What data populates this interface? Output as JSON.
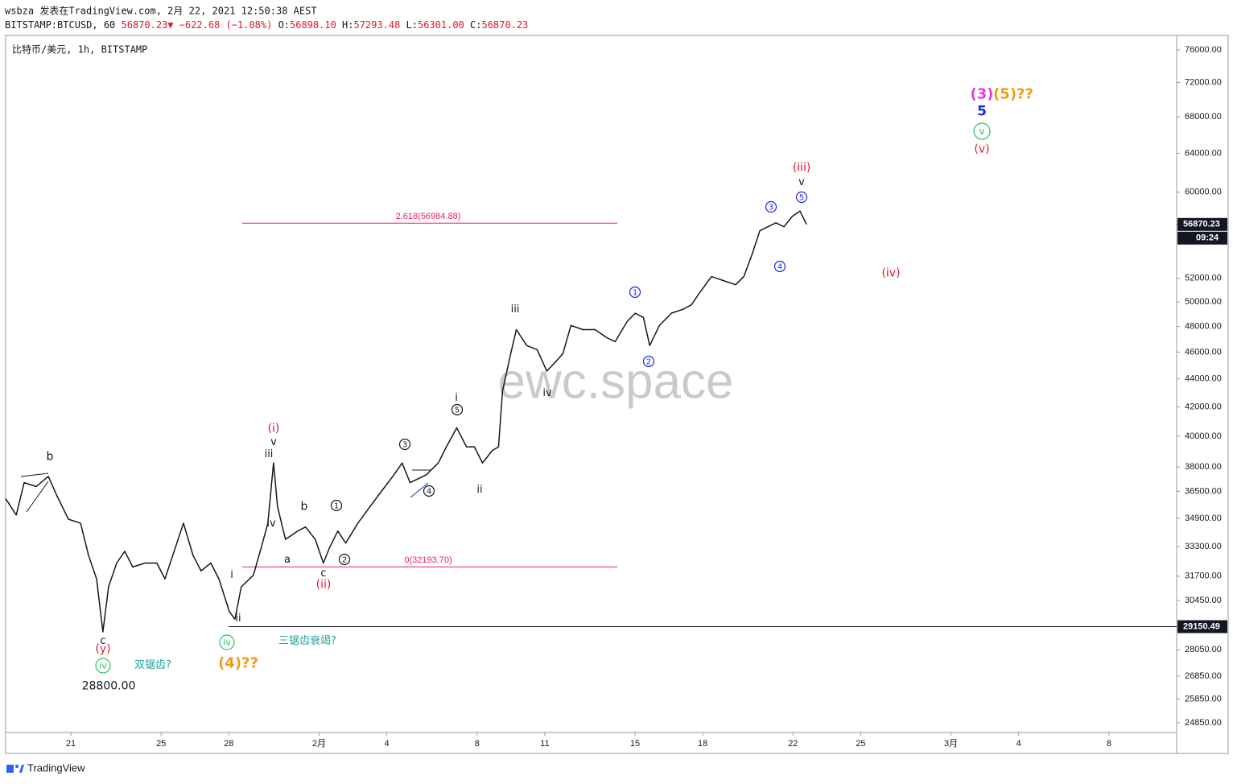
{
  "chart_data": {
    "type": "line",
    "header": "wsbza 发表在TradingView.com, 2月 22, 2021 12:50:38 AEST",
    "quote": [
      {
        "text": "BITSTAMP:BTCUSD, 60 ",
        "color": "#131722"
      },
      {
        "text": "56870.23",
        "color": "#e0182d"
      },
      {
        "text": "▼",
        "color": "#e0182d"
      },
      {
        "text": " −622.68 (−1.08%) ",
        "color": "#e0182d"
      },
      {
        "text": "O:",
        "color": "#131722"
      },
      {
        "text": "56898.10",
        "color": "#e0182d"
      },
      {
        "text": " H:",
        "color": "#131722"
      },
      {
        "text": "57293.48",
        "color": "#e0182d"
      },
      {
        "text": " L:",
        "color": "#131722"
      },
      {
        "text": "56301.00",
        "color": "#e0182d"
      },
      {
        "text": " C:",
        "color": "#131722"
      },
      {
        "text": "56870.23",
        "color": "#e0182d"
      }
    ],
    "title": "比特币/美元, 1h, BITSTAMP",
    "watermark": "ewc.space",
    "footer": "TradingView",
    "color": "#131722",
    "log_scale": true,
    "x": [
      -2.89,
      -2.42,
      -2.07,
      -1.53,
      -1.0,
      -0.64,
      -0.11,
      0.43,
      0.78,
      1.14,
      1.42,
      1.67,
      2.03,
      2.39,
      2.74,
      3.28,
      3.81,
      4.17,
      4.52,
      4.99,
      5.41,
      5.77,
      6.2,
      6.56,
      7.02,
      7.27,
      7.55,
      8.09,
      8.44,
      8.73,
      8.98,
      9.16,
      9.51,
      10.05,
      10.4,
      10.83,
      11.19,
      11.47,
      11.83,
      12.18,
      12.72,
      13.25,
      13.79,
      14.32,
      14.68,
      15.03,
      15.39,
      15.75,
      16.28,
      16.64,
      17.1,
      17.53,
      17.88,
      18.24,
      18.67,
      18.95,
      19.13,
      19.49,
      19.74,
      20.2,
      20.66,
      21.09,
      21.45,
      21.8,
      22.16,
      22.69,
      23.23,
      23.76,
      24.12,
      24.65,
      25.01,
      25.37,
      25.65,
      26.08,
      26.61,
      27.15,
      27.5,
      27.86,
      28.39,
      28.93,
      29.46,
      29.82,
      30.17,
      30.53,
      30.89,
      31.24,
      31.6,
      31.96,
      32.31,
      32.6
    ],
    "values": [
      36060,
      35090,
      37030,
      36790,
      37420,
      36300,
      34850,
      34620,
      32830,
      31560,
      28900,
      31140,
      32400,
      33040,
      32190,
      32400,
      32400,
      31560,
      32830,
      34620,
      32830,
      31980,
      32400,
      31560,
      29900,
      29510,
      31140,
      31760,
      33260,
      34620,
      38260,
      35570,
      33700,
      34170,
      34400,
      33700,
      32400,
      33260,
      34170,
      33490,
      34620,
      35570,
      36550,
      37520,
      38260,
      37030,
      37270,
      37520,
      38260,
      39300,
      40560,
      39300,
      39300,
      38260,
      39050,
      39300,
      43140,
      45870,
      47750,
      46500,
      46190,
      44570,
      45200,
      45870,
      48080,
      47750,
      47750,
      47100,
      46800,
      48400,
      49070,
      48730,
      46500,
      48080,
      49070,
      49410,
      49760,
      50770,
      52150,
      51790,
      51450,
      52150,
      54020,
      56270,
      56650,
      57020,
      56650,
      57620,
      58150,
      56870.23
    ],
    "xlim": [
      -2.89,
      49.0
    ],
    "xticks": [
      {
        "value": 0,
        "label": "21"
      },
      {
        "value": 4,
        "label": "25"
      },
      {
        "value": 7,
        "label": "28"
      },
      {
        "value": 11,
        "label": "2月"
      },
      {
        "value": 14,
        "label": "4"
      },
      {
        "value": 18,
        "label": "8"
      },
      {
        "value": 21,
        "label": "11"
      },
      {
        "value": 25,
        "label": "15"
      },
      {
        "value": 28,
        "label": "18"
      },
      {
        "value": 32,
        "label": "22"
      },
      {
        "value": 35,
        "label": "25"
      },
      {
        "value": 39,
        "label": "3月"
      },
      {
        "value": 42,
        "label": "4"
      },
      {
        "value": 46,
        "label": "8"
      }
    ],
    "ylim": [
      24450,
      77850
    ],
    "yticks": [
      {
        "value": 76000,
        "label": "76000.00"
      },
      {
        "value": 72000,
        "label": "72000.00"
      },
      {
        "value": 68000,
        "label": "68000.00"
      },
      {
        "value": 64000,
        "label": "64000.00"
      },
      {
        "value": 60000,
        "label": "60000.00"
      },
      {
        "value": 52000,
        "label": "52000.00"
      },
      {
        "value": 50000,
        "label": "50000.00"
      },
      {
        "value": 48000,
        "label": "48000.00"
      },
      {
        "value": 46000,
        "label": "46000.00"
      },
      {
        "value": 44000,
        "label": "44000.00"
      },
      {
        "value": 42000,
        "label": "42000.00"
      },
      {
        "value": 40000,
        "label": "40000.00"
      },
      {
        "value": 38000,
        "label": "38000.00"
      },
      {
        "value": 36500,
        "label": "36500.00"
      },
      {
        "value": 34900,
        "label": "34900.00"
      },
      {
        "value": 33300,
        "label": "33300.00"
      },
      {
        "value": 31700,
        "label": "31700.00"
      },
      {
        "value": 30450,
        "label": "30450.00"
      },
      {
        "value": 28050,
        "label": "28050.00"
      },
      {
        "value": 26850,
        "label": "26850.00"
      },
      {
        "value": 25850,
        "label": "25850.00"
      },
      {
        "value": 24850,
        "label": "24850.00"
      }
    ],
    "fib_levels": [
      {
        "value": 56984.88,
        "label": "2.618(56984.88)"
      },
      {
        "value": 32193.7,
        "label": "0(32193.70)"
      }
    ],
    "fib_color": "#e91e63",
    "horizontal_line": {
      "value": 29150.49,
      "label": "29150.49"
    },
    "last_price": {
      "value": 56870.23,
      "label": "56870.23"
    },
    "countdown": "09:24",
    "annotations": [
      {
        "text": "b",
        "color": "#131722",
        "circled": false
      },
      {
        "text": "c",
        "color": "#131722",
        "circled": false
      },
      {
        "text": "(y)",
        "color": "#e0182d",
        "circled": false
      },
      {
        "text": "iv",
        "color": "#22c55e",
        "circled": true
      },
      {
        "text": "双锯齿?",
        "color": "#26a69a",
        "circled": false
      },
      {
        "text": "28800.00",
        "color": "#131722",
        "circled": false
      },
      {
        "text": "i",
        "color": "#131722",
        "circled": false
      },
      {
        "text": "ii",
        "color": "#131722",
        "circled": false
      },
      {
        "text": "iv",
        "color": "#22c55e",
        "circled": true
      },
      {
        "text": "三锯齿衰竭?",
        "color": "#26a69a",
        "circled": false
      },
      {
        "text": "(4)??",
        "color": "#f59a16",
        "circled": false
      },
      {
        "text": "(i)",
        "color": "#e0182d",
        "circled": false
      },
      {
        "text": "v",
        "color": "#131722",
        "circled": false
      },
      {
        "text": "iii",
        "color": "#131722",
        "circled": false
      },
      {
        "text": "iv",
        "color": "#131722",
        "circled": false
      },
      {
        "text": "a",
        "color": "#131722",
        "circled": false
      },
      {
        "text": "b",
        "color": "#131722",
        "circled": false
      },
      {
        "text": "c",
        "color": "#131722",
        "circled": false
      },
      {
        "text": "(ii)",
        "color": "#e0182d",
        "circled": false
      },
      {
        "text": "1",
        "color": "#131722",
        "circled": true
      },
      {
        "text": "2",
        "color": "#131722",
        "circled": true
      },
      {
        "text": "3",
        "color": "#131722",
        "circled": true
      },
      {
        "text": "4",
        "color": "#131722",
        "circled": true
      },
      {
        "text": "5",
        "color": "#131722",
        "circled": true
      },
      {
        "text": "i",
        "color": "#131722",
        "circled": false
      },
      {
        "text": "ii",
        "color": "#131722",
        "circled": false
      },
      {
        "text": "iii",
        "color": "#131722",
        "circled": false
      },
      {
        "text": "iv",
        "color": "#131722",
        "circled": false
      },
      {
        "text": "1",
        "color": "#1a28d8",
        "circled": true
      },
      {
        "text": "2",
        "color": "#1a28d8",
        "circled": true
      },
      {
        "text": "3",
        "color": "#1a28d8",
        "circled": true
      },
      {
        "text": "4",
        "color": "#1a28d8",
        "circled": true
      },
      {
        "text": "5",
        "color": "#1a28d8",
        "circled": true
      },
      {
        "text": "v",
        "color": "#131722",
        "circled": false
      },
      {
        "text": "(iii)",
        "color": "#e0182d",
        "circled": false
      },
      {
        "text": "(iv)",
        "color": "#e0182d",
        "circled": false
      },
      {
        "text": "(3)",
        "color": "#e040e0",
        "circled": false
      },
      {
        "text": "(5)??",
        "color": "#f59a16",
        "circled": false
      },
      {
        "text": "5",
        "color": "#1a28d8",
        "circled": false
      },
      {
        "text": "v",
        "color": "#22c55e",
        "circled": true
      },
      {
        "text": "(v)",
        "color": "#e0182d",
        "circled": false
      }
    ]
  }
}
